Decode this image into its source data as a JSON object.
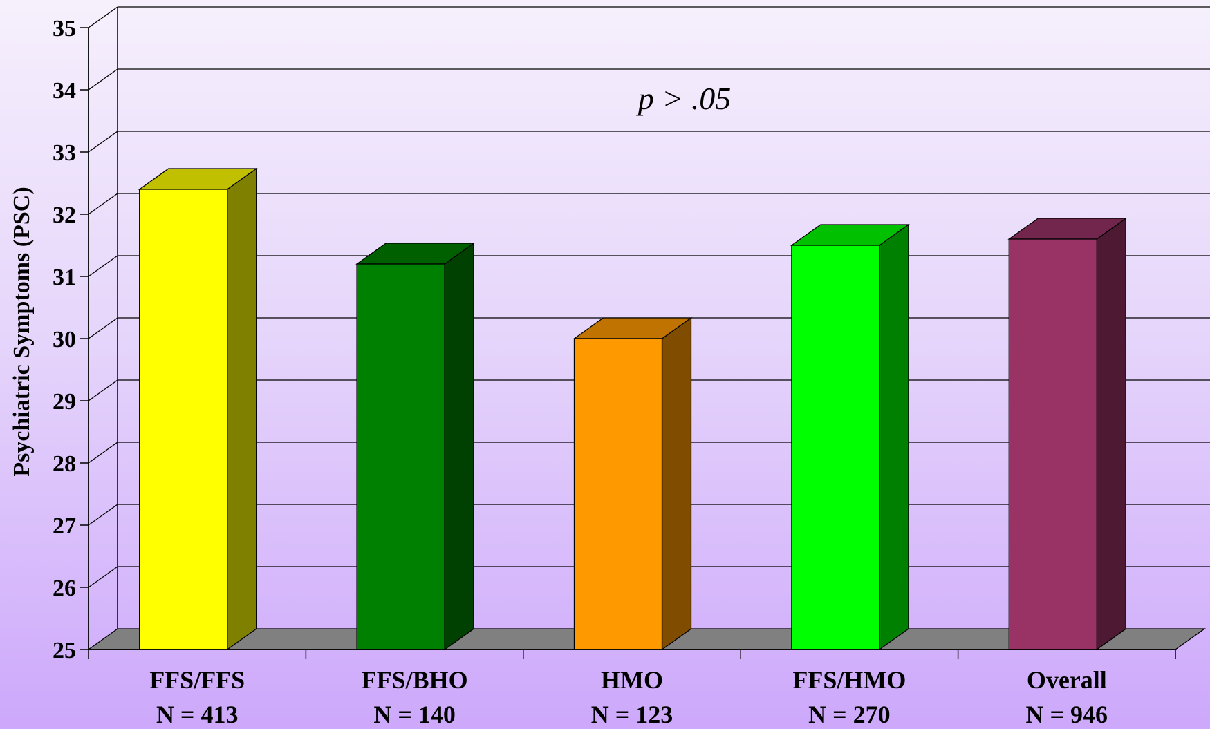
{
  "chart_data": {
    "type": "bar",
    "categories": [
      "FFS/FFS",
      "FFS/BHO",
      "HMO",
      "FFS/HMO",
      "Overall"
    ],
    "category_sublabels": [
      "N = 413",
      "N = 140",
      "N = 123",
      "N = 270",
      "N = 946"
    ],
    "values": [
      32.4,
      31.2,
      30.0,
      31.5,
      31.6
    ],
    "ylabel": "Psychiatric Symptoms (PSC)",
    "ylim": [
      25,
      35
    ],
    "yticks": [
      25,
      26,
      27,
      28,
      29,
      30,
      31,
      32,
      33,
      34,
      35
    ],
    "annotation": "p > .05",
    "grid": true,
    "style": "3d-bar",
    "colors": {
      "front": [
        "#ffff00",
        "#008000",
        "#ff9900",
        "#00ff00",
        "#993366"
      ],
      "side": [
        "#808000",
        "#004000",
        "#804c00",
        "#008000",
        "#4d1933"
      ],
      "top": [
        "#c0c000",
        "#006000",
        "#c07300",
        "#00c000",
        "#73264d"
      ],
      "floor": "#808080"
    }
  }
}
